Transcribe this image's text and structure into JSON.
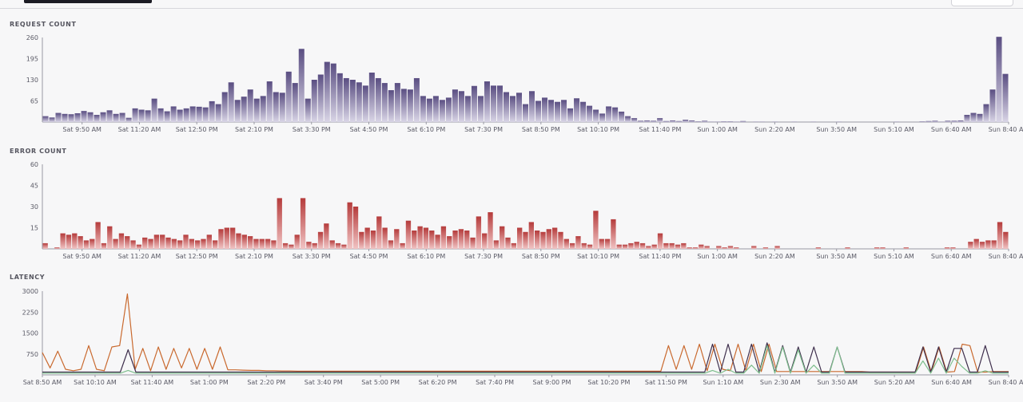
{
  "colors": {
    "request_top": "#5a4e82",
    "request_bottom": "#d9d5e6",
    "error_top": "#b53b3b",
    "error_bottom": "#f1c4c4",
    "latency_orange": "#c9692e",
    "latency_dark": "#3e2e4c",
    "latency_green": "#7fbf8e",
    "axis": "#9a9aa5"
  },
  "chart_data": [
    {
      "id": "request",
      "type": "bar",
      "title": "REQUEST COUNT",
      "y_ticks": [
        "260",
        "195",
        "130",
        "65"
      ],
      "y_tick_values": [
        260,
        195,
        130,
        65
      ],
      "ylim": [
        0,
        260
      ],
      "x_tick_labels": [
        "Sat 9:50 AM",
        "Sat 11:20 AM",
        "Sat 12:50 PM",
        "Sat 2:10 PM",
        "Sat 3:30 PM",
        "Sat 4:50 PM",
        "Sat 6:10 PM",
        "Sat 7:30 PM",
        "Sat 8:50 PM",
        "Sat 10:10 PM",
        "Sat 11:40 PM",
        "Sun 1:00 AM",
        "Sun 2:20 AM",
        "Sun 3:50 AM",
        "Sun 5:10 AM",
        "Sun 6:40 AM",
        "Sun 8:40 AM"
      ],
      "values": [
        18,
        14,
        28,
        25,
        24,
        27,
        34,
        30,
        22,
        30,
        36,
        25,
        28,
        13,
        42,
        38,
        36,
        72,
        42,
        33,
        48,
        38,
        42,
        48,
        47,
        45,
        64,
        55,
        92,
        122,
        68,
        78,
        100,
        72,
        80,
        125,
        92,
        90,
        155,
        120,
        225,
        72,
        130,
        146,
        185,
        180,
        150,
        135,
        130,
        122,
        112,
        152,
        135,
        120,
        98,
        120,
        102,
        100,
        135,
        80,
        72,
        80,
        68,
        75,
        100,
        95,
        80,
        111,
        80,
        125,
        112,
        112,
        92,
        80,
        90,
        55,
        95,
        65,
        75,
        68,
        62,
        68,
        42,
        73,
        62,
        50,
        38,
        26,
        48,
        45,
        32,
        18,
        12,
        4,
        5,
        4,
        12,
        3,
        5,
        3,
        7,
        5,
        2,
        4,
        1,
        1,
        2,
        2,
        1,
        3,
        0,
        1,
        1,
        0,
        1,
        0,
        0,
        1,
        0,
        0,
        1,
        0,
        0,
        0,
        1,
        0,
        0,
        0,
        0,
        0,
        0,
        0,
        0,
        1,
        0,
        0,
        0,
        2,
        3,
        4,
        1,
        4,
        4,
        5,
        22,
        28,
        25,
        55,
        100,
        262,
        148
      ],
      "x_ticks_at": [
        9,
        22,
        35,
        48,
        61,
        74,
        87,
        100,
        113,
        126,
        140,
        153,
        166,
        180,
        193,
        206,
        219
      ]
    },
    {
      "id": "error",
      "type": "bar",
      "title": "ERROR COUNT",
      "y_ticks": [
        "60",
        "45",
        "30",
        "15"
      ],
      "y_tick_values": [
        60,
        45,
        30,
        15
      ],
      "ylim": [
        0,
        60
      ],
      "x_tick_labels": [
        "Sat 9:50 AM",
        "Sat 11:20 AM",
        "Sat 12:50 PM",
        "Sat 2:10 PM",
        "Sat 3:30 PM",
        "Sat 4:50 PM",
        "Sat 6:10 PM",
        "Sat 7:30 PM",
        "Sat 8:50 PM",
        "Sat 10:10 PM",
        "Sat 11:40 PM",
        "Sun 1:00 AM",
        "Sun 2:20 AM",
        "Sun 3:50 AM",
        "Sun 5:10 AM",
        "Sun 6:40 AM",
        "Sun 8:40 AM"
      ],
      "values": [
        4,
        0,
        1,
        11,
        10,
        11,
        9,
        6,
        7,
        19,
        4,
        16,
        7,
        11,
        9,
        6,
        3,
        8,
        7,
        10,
        10,
        8,
        7,
        6,
        10,
        7,
        6,
        7,
        10,
        6,
        14,
        15,
        15,
        11,
        10,
        9,
        7,
        7,
        7,
        6,
        36,
        4,
        3,
        10,
        36,
        5,
        4,
        12,
        18,
        6,
        4,
        3,
        33,
        30,
        12,
        15,
        13,
        23,
        15,
        6,
        14,
        4,
        20,
        13,
        16,
        15,
        13,
        10,
        16,
        9,
        13,
        14,
        13,
        8,
        23,
        11,
        26,
        6,
        16,
        8,
        4,
        15,
        12,
        19,
        13,
        12,
        14,
        15,
        12,
        7,
        4,
        9,
        4,
        3,
        27,
        7,
        7,
        21,
        3,
        3,
        4,
        5,
        4,
        2,
        3,
        11,
        4,
        4,
        3,
        4,
        1,
        1,
        3,
        2,
        0,
        2,
        1,
        2,
        1,
        0,
        0,
        2,
        0,
        1,
        0,
        2,
        0,
        0,
        0,
        0,
        0,
        0,
        1,
        0,
        0,
        0,
        0,
        1,
        0,
        0,
        0,
        0,
        1,
        1,
        0,
        0,
        0,
        1,
        0,
        0,
        0,
        0,
        0,
        0,
        1,
        1,
        0,
        0,
        5,
        7,
        5,
        6,
        6,
        19,
        12
      ],
      "x_ticks_at": [
        9,
        22,
        35,
        48,
        61,
        74,
        87,
        100,
        113,
        126,
        140,
        153,
        166,
        180,
        193,
        206,
        219
      ]
    },
    {
      "id": "latency",
      "type": "line",
      "title": "LATENCY",
      "y_ticks": [
        "3000",
        "2250",
        "1500",
        "750"
      ],
      "y_tick_values": [
        3000,
        2250,
        1500,
        750
      ],
      "ylim": [
        0,
        3000
      ],
      "x_tick_labels": [
        "Sat 8:50 AM",
        "Sat 10:10 AM",
        "Sat 11:40 AM",
        "Sat 1:00 PM",
        "Sat 2:20 PM",
        "Sat 3:40 PM",
        "Sat 5:00 PM",
        "Sat 6:20 PM",
        "Sat 7:40 PM",
        "Sat 9:00 PM",
        "Sat 10:20 PM",
        "Sat 11:50 PM",
        "Sun 1:10 AM",
        "Sun 2:30 AM",
        "Sun 3:50 AM",
        "Sun 5:20 AM",
        "Sun 6:40 AM",
        "Sun 8:40 AM"
      ],
      "series": [
        {
          "color_key": "latency_orange",
          "values": [
            800,
            250,
            850,
            200,
            150,
            200,
            1050,
            200,
            150,
            1000,
            1050,
            2900,
            200,
            950,
            150,
            1000,
            200,
            950,
            250,
            950,
            200,
            950,
            200,
            1000,
            180,
            180,
            170,
            160,
            160,
            150,
            150,
            140,
            140,
            130,
            130,
            130,
            130,
            130,
            130,
            130,
            130,
            130,
            130,
            130,
            130,
            130,
            130,
            130,
            130,
            130,
            130,
            130,
            130,
            130,
            130,
            130,
            130,
            130,
            130,
            130,
            130,
            130,
            130,
            130,
            130,
            130,
            130,
            130,
            130,
            130,
            130,
            130,
            130,
            130,
            130,
            130,
            130,
            130,
            130,
            130,
            130,
            1050,
            200,
            1050,
            200,
            1100,
            150,
            1100,
            200,
            150,
            1100,
            150,
            1100,
            120,
            1100,
            120,
            120,
            120,
            120,
            120,
            120,
            120,
            120,
            120,
            120,
            120,
            120,
            100,
            100,
            100,
            100,
            100,
            100,
            100,
            1000,
            100,
            1000,
            100,
            120,
            1100,
            1050,
            100,
            100,
            120,
            120,
            120
          ]
        },
        {
          "color_key": "latency_dark",
          "values": [
            100,
            100,
            100,
            100,
            100,
            100,
            100,
            100,
            100,
            100,
            100,
            900,
            100,
            100,
            100,
            100,
            100,
            100,
            100,
            100,
            100,
            100,
            100,
            100,
            100,
            100,
            100,
            100,
            100,
            100,
            100,
            100,
            100,
            100,
            100,
            100,
            100,
            100,
            100,
            100,
            100,
            100,
            100,
            100,
            100,
            100,
            100,
            100,
            100,
            100,
            100,
            100,
            100,
            100,
            100,
            100,
            100,
            100,
            100,
            100,
            100,
            100,
            100,
            100,
            100,
            100,
            100,
            100,
            100,
            100,
            100,
            100,
            100,
            100,
            100,
            100,
            100,
            100,
            100,
            100,
            100,
            100,
            100,
            100,
            100,
            100,
            1100,
            100,
            1100,
            100,
            100,
            1100,
            100,
            1150,
            100,
            1050,
            100,
            1000,
            100,
            1000,
            100,
            100,
            1000,
            100,
            100,
            100,
            100,
            100,
            100,
            100,
            100,
            100,
            100,
            1000,
            100,
            1000,
            100,
            950,
            950,
            100,
            100,
            1050,
            100,
            100,
            100
          ]
        },
        {
          "color_key": "latency_green",
          "values": [
            60,
            60,
            60,
            60,
            60,
            60,
            60,
            60,
            60,
            60,
            60,
            160,
            60,
            60,
            60,
            60,
            60,
            60,
            60,
            60,
            60,
            60,
            60,
            60,
            60,
            60,
            60,
            60,
            60,
            60,
            60,
            60,
            60,
            60,
            60,
            60,
            60,
            60,
            60,
            60,
            60,
            60,
            60,
            60,
            60,
            60,
            60,
            60,
            60,
            60,
            60,
            60,
            60,
            60,
            60,
            60,
            60,
            60,
            60,
            60,
            60,
            60,
            60,
            60,
            60,
            60,
            60,
            60,
            60,
            60,
            60,
            60,
            60,
            60,
            60,
            60,
            60,
            60,
            60,
            60,
            60,
            60,
            60,
            60,
            60,
            60,
            160,
            60,
            200,
            60,
            60,
            350,
            60,
            1050,
            60,
            1000,
            60,
            900,
            60,
            350,
            60,
            60,
            1000,
            60,
            60,
            60,
            60,
            60,
            60,
            60,
            60,
            60,
            60,
            500,
            60,
            600,
            60,
            600,
            300,
            60,
            60,
            150,
            60,
            60,
            60
          ]
        }
      ],
      "x_ticks_at": [
        0,
        12,
        25,
        38,
        51,
        64,
        77,
        90,
        103,
        116,
        129,
        142,
        155,
        168,
        181,
        194,
        207,
        220
      ]
    }
  ]
}
